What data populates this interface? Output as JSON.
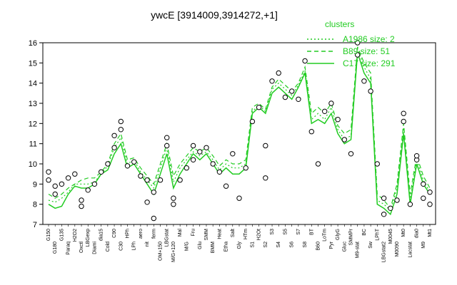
{
  "chart_data": {
    "type": "line",
    "title": "ywcE [3914009,3914272,+1]",
    "ylim": [
      7,
      16
    ],
    "yticks": [
      7,
      8,
      9,
      10,
      11,
      12,
      13,
      14,
      15,
      16
    ],
    "line_color": "#22cc22",
    "legend": {
      "title": "clusters",
      "position": "top-right",
      "entries": [
        {
          "label": "A1986 size: 2",
          "style": "dotted"
        },
        {
          "label": "B89 size: 51",
          "style": "dashed"
        },
        {
          "label": "C17 size: 291",
          "style": "solid"
        }
      ]
    },
    "x_tick_labels": [
      "G150",
      "G180",
      "G135",
      "Paraq",
      "H2O2",
      "Oxctl",
      "LBGexp",
      "Diami",
      "dia15",
      "Cold",
      "C90",
      "C30",
      "HPh",
      "LPh",
      "aero",
      "nit",
      "ferm",
      "OM+150",
      "LBGstat",
      "M/G+120",
      "Mal",
      "M/G",
      "Fru",
      "Glu",
      "SMM",
      "BMM",
      "Heat",
      "Etha",
      "Salt",
      "Gly",
      "HTm",
      "S1",
      "H2Ot",
      "S2",
      "S3",
      "S4",
      "S5",
      "S6",
      "S7",
      "S8",
      "BT",
      "B60",
      "LoTm",
      "Pyr",
      "GlyG",
      "Gluc",
      "SMMPr",
      "M9-stat",
      "BC",
      "Sw",
      "LPhT",
      "LBGstat2",
      "M0045",
      "M0090",
      "Mt0",
      "Lacstat",
      "dia0",
      "M9",
      "Mt1"
    ],
    "series": [
      {
        "name": "C17 size: 291",
        "values": [
          8.0,
          7.8,
          7.9,
          8.5,
          8.9,
          8.8,
          8.8,
          9.0,
          9.5,
          9.7,
          10.5,
          11.0,
          9.8,
          10.0,
          9.5,
          9.0,
          8.5,
          9.5,
          10.5,
          8.8,
          9.5,
          10.0,
          10.5,
          10.2,
          10.5,
          10.0,
          9.5,
          9.8,
          9.5,
          9.5,
          9.8,
          12.5,
          12.8,
          12.5,
          13.5,
          13.8,
          13.5,
          13.2,
          13.8,
          14.5,
          12.0,
          12.2,
          12.0,
          12.5,
          11.5,
          11.0,
          11.2,
          15.5,
          14.5,
          14.0,
          8.0,
          7.8,
          7.5,
          8.5,
          11.5,
          8.0,
          10.0,
          9.0,
          8.5
        ]
      },
      {
        "name": "B89 size: 51",
        "values": [
          8.5,
          8.3,
          8.5,
          8.8,
          9.0,
          9.2,
          9.3,
          9.3,
          9.6,
          10.0,
          11.0,
          11.5,
          10.2,
          10.3,
          9.8,
          9.4,
          9.0,
          10.0,
          11.0,
          9.4,
          10.0,
          10.4,
          10.8,
          10.6,
          10.8,
          10.4,
          9.9,
          10.2,
          10.0,
          10.0,
          10.2,
          12.8,
          13.0,
          12.7,
          13.8,
          14.2,
          13.9,
          13.6,
          14.0,
          14.8,
          12.5,
          12.8,
          12.5,
          13.0,
          11.9,
          11.5,
          11.7,
          15.8,
          15.0,
          14.5,
          8.5,
          8.2,
          7.8,
          9.0,
          12.0,
          8.5,
          10.4,
          9.4,
          8.8
        ]
      },
      {
        "name": "A1986 size: 2",
        "values": [
          8.2,
          8.1,
          8.3,
          8.6,
          9.0,
          9.0,
          9.0,
          9.1,
          9.5,
          9.9,
          10.8,
          11.3,
          10.0,
          10.2,
          9.6,
          9.2,
          8.8,
          9.8,
          10.8,
          9.1,
          9.8,
          10.2,
          10.6,
          10.4,
          10.6,
          10.2,
          9.7,
          10.0,
          9.8,
          9.8,
          10.0,
          12.6,
          12.9,
          12.6,
          13.7,
          14.0,
          13.7,
          13.4,
          13.9,
          14.6,
          12.2,
          12.5,
          12.2,
          12.8,
          11.7,
          11.2,
          11.4,
          15.7,
          14.8,
          14.2,
          8.2,
          8.0,
          7.7,
          8.8,
          11.8,
          8.2,
          10.2,
          9.2,
          8.6
        ]
      }
    ],
    "points": [
      {
        "x": 0,
        "y": 9.6
      },
      {
        "x": 0,
        "y": 9.2
      },
      {
        "x": 1,
        "y": 8.9
      },
      {
        "x": 1,
        "y": 8.5
      },
      {
        "x": 2,
        "y": 9.0
      },
      {
        "x": 3,
        "y": 9.3
      },
      {
        "x": 4,
        "y": 9.5
      },
      {
        "x": 5,
        "y": 8.2
      },
      {
        "x": 5,
        "y": 7.9
      },
      {
        "x": 6,
        "y": 8.7
      },
      {
        "x": 7,
        "y": 9.0
      },
      {
        "x": 8,
        "y": 9.6
      },
      {
        "x": 9,
        "y": 10.0
      },
      {
        "x": 10,
        "y": 11.4
      },
      {
        "x": 10,
        "y": 10.8
      },
      {
        "x": 11,
        "y": 12.1
      },
      {
        "x": 11,
        "y": 11.7
      },
      {
        "x": 12,
        "y": 9.9
      },
      {
        "x": 13,
        "y": 10.1
      },
      {
        "x": 14,
        "y": 9.4
      },
      {
        "x": 15,
        "y": 9.2
      },
      {
        "x": 15,
        "y": 8.1
      },
      {
        "x": 16,
        "y": 7.3
      },
      {
        "x": 16,
        "y": 8.6
      },
      {
        "x": 17,
        "y": 9.2
      },
      {
        "x": 18,
        "y": 11.3
      },
      {
        "x": 18,
        "y": 10.9
      },
      {
        "x": 19,
        "y": 8.3
      },
      {
        "x": 19,
        "y": 8.0
      },
      {
        "x": 20,
        "y": 9.2
      },
      {
        "x": 21,
        "y": 9.8
      },
      {
        "x": 22,
        "y": 10.9
      },
      {
        "x": 22,
        "y": 10.2
      },
      {
        "x": 23,
        "y": 10.6
      },
      {
        "x": 24,
        "y": 10.8
      },
      {
        "x": 25,
        "y": 10.0
      },
      {
        "x": 26,
        "y": 9.6
      },
      {
        "x": 27,
        "y": 8.9
      },
      {
        "x": 28,
        "y": 10.5
      },
      {
        "x": 29,
        "y": 8.3
      },
      {
        "x": 30,
        "y": 9.8
      },
      {
        "x": 31,
        "y": 12.1
      },
      {
        "x": 32,
        "y": 12.8
      },
      {
        "x": 33,
        "y": 10.9
      },
      {
        "x": 33,
        "y": 9.3
      },
      {
        "x": 34,
        "y": 14.1
      },
      {
        "x": 35,
        "y": 14.5
      },
      {
        "x": 36,
        "y": 13.3
      },
      {
        "x": 37,
        "y": 13.6
      },
      {
        "x": 38,
        "y": 13.2
      },
      {
        "x": 39,
        "y": 15.1
      },
      {
        "x": 40,
        "y": 11.6
      },
      {
        "x": 41,
        "y": 10.0
      },
      {
        "x": 42,
        "y": 12.6
      },
      {
        "x": 43,
        "y": 13.0
      },
      {
        "x": 44,
        "y": 12.2
      },
      {
        "x": 45,
        "y": 11.2
      },
      {
        "x": 46,
        "y": 10.5
      },
      {
        "x": 47,
        "y": 15.4
      },
      {
        "x": 47,
        "y": 16.0
      },
      {
        "x": 48,
        "y": 14.1
      },
      {
        "x": 49,
        "y": 13.6
      },
      {
        "x": 50,
        "y": 10.0
      },
      {
        "x": 51,
        "y": 7.5
      },
      {
        "x": 51,
        "y": 8.3
      },
      {
        "x": 52,
        "y": 7.8
      },
      {
        "x": 53,
        "y": 8.2
      },
      {
        "x": 54,
        "y": 12.5
      },
      {
        "x": 54,
        "y": 12.1
      },
      {
        "x": 55,
        "y": 8.0
      },
      {
        "x": 56,
        "y": 10.2
      },
      {
        "x": 56,
        "y": 10.4
      },
      {
        "x": 57,
        "y": 9.0
      },
      {
        "x": 57,
        "y": 8.3
      },
      {
        "x": 58,
        "y": 8.6
      },
      {
        "x": 58,
        "y": 8.0
      }
    ]
  }
}
